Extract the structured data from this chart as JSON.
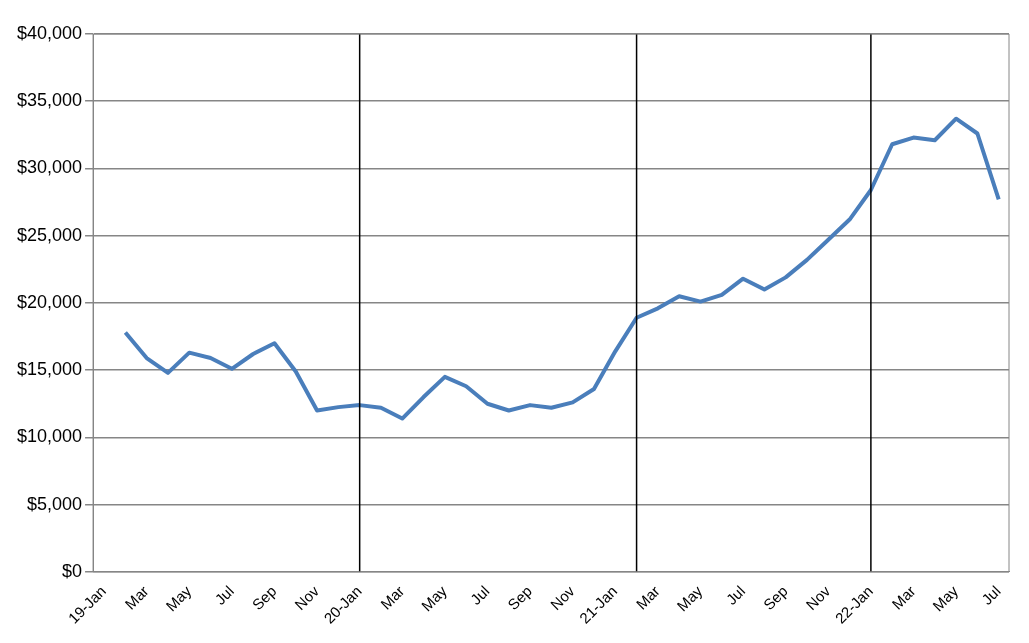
{
  "chart_data": {
    "type": "line",
    "x": [
      "2019-02",
      "2019-03",
      "2019-04",
      "2019-05",
      "2019-06",
      "2019-07",
      "2019-08",
      "2019-09",
      "2019-10",
      "2019-11",
      "2019-12",
      "2020-01",
      "2020-02",
      "2020-03",
      "2020-04",
      "2020-05",
      "2020-06",
      "2020-07",
      "2020-08",
      "2020-09",
      "2020-10",
      "2020-11",
      "2020-12",
      "2021-01",
      "2021-02",
      "2021-03",
      "2021-04",
      "2021-05",
      "2021-06",
      "2021-07",
      "2021-08",
      "2021-09",
      "2021-10",
      "2021-11",
      "2021-12",
      "2022-01",
      "2022-02",
      "2022-03",
      "2022-04",
      "2022-05",
      "2022-06",
      "2022-07"
    ],
    "series": [
      {
        "color": "#4a7ebb",
        "values": [
          17800,
          15900,
          14800,
          16300,
          15900,
          15100,
          16200,
          17000,
          14900,
          12000,
          12250,
          12400,
          12200,
          11400,
          13000,
          14500,
          13800,
          12500,
          12000,
          12400,
          12200,
          12600,
          13600,
          16400,
          18900,
          19600,
          20500,
          20100,
          20600,
          21800,
          21000,
          21900,
          23200,
          24700,
          26200,
          28400,
          31800,
          32300,
          32100,
          33700,
          32600,
          27700
        ]
      }
    ],
    "xlim": [
      "2018-12-16",
      "2022-07-16"
    ],
    "xticks": [
      {
        "value": "2019-01",
        "label": "19-Jan"
      },
      {
        "value": "2019-03",
        "label": "Mar"
      },
      {
        "value": "2019-05",
        "label": "May"
      },
      {
        "value": "2019-07",
        "label": "Jul"
      },
      {
        "value": "2019-09",
        "label": "Sep"
      },
      {
        "value": "2019-11",
        "label": "Nov"
      },
      {
        "value": "2020-01",
        "label": "20-Jan"
      },
      {
        "value": "2020-03",
        "label": "Mar"
      },
      {
        "value": "2020-05",
        "label": "May"
      },
      {
        "value": "2020-07",
        "label": "Jul"
      },
      {
        "value": "2020-09",
        "label": "Sep"
      },
      {
        "value": "2020-11",
        "label": "Nov"
      },
      {
        "value": "2021-01",
        "label": "21-Jan"
      },
      {
        "value": "2021-03",
        "label": "Mar"
      },
      {
        "value": "2021-05",
        "label": "May"
      },
      {
        "value": "2021-07",
        "label": "Jul"
      },
      {
        "value": "2021-09",
        "label": "Sep"
      },
      {
        "value": "2021-11",
        "label": "Nov"
      },
      {
        "value": "2022-01",
        "label": "22-Jan"
      },
      {
        "value": "2022-03",
        "label": "Mar"
      },
      {
        "value": "2022-05",
        "label": "May"
      },
      {
        "value": "2022-07",
        "label": "Jul"
      }
    ],
    "ylim": [
      0,
      40000
    ],
    "yticks": [
      {
        "value": 0,
        "label": "$0"
      },
      {
        "value": 5000,
        "label": "$5,000"
      },
      {
        "value": 10000,
        "label": "$10,000"
      },
      {
        "value": 15000,
        "label": "$15,000"
      },
      {
        "value": 20000,
        "label": "$20,000"
      },
      {
        "value": 25000,
        "label": "$25,000"
      },
      {
        "value": 30000,
        "label": "$30,000"
      },
      {
        "value": 35000,
        "label": "$35,000"
      },
      {
        "value": 40000,
        "label": "$40,000"
      }
    ],
    "ref_lines": [
      {
        "axis": "x",
        "value": "2020-01",
        "color": "#000000"
      },
      {
        "axis": "x",
        "value": "2021-02",
        "color": "#000000"
      },
      {
        "axis": "x",
        "value": "2022-01",
        "color": "#000000"
      }
    ],
    "grid": "y",
    "legend": false,
    "marker": "none",
    "line_style": "solid"
  }
}
